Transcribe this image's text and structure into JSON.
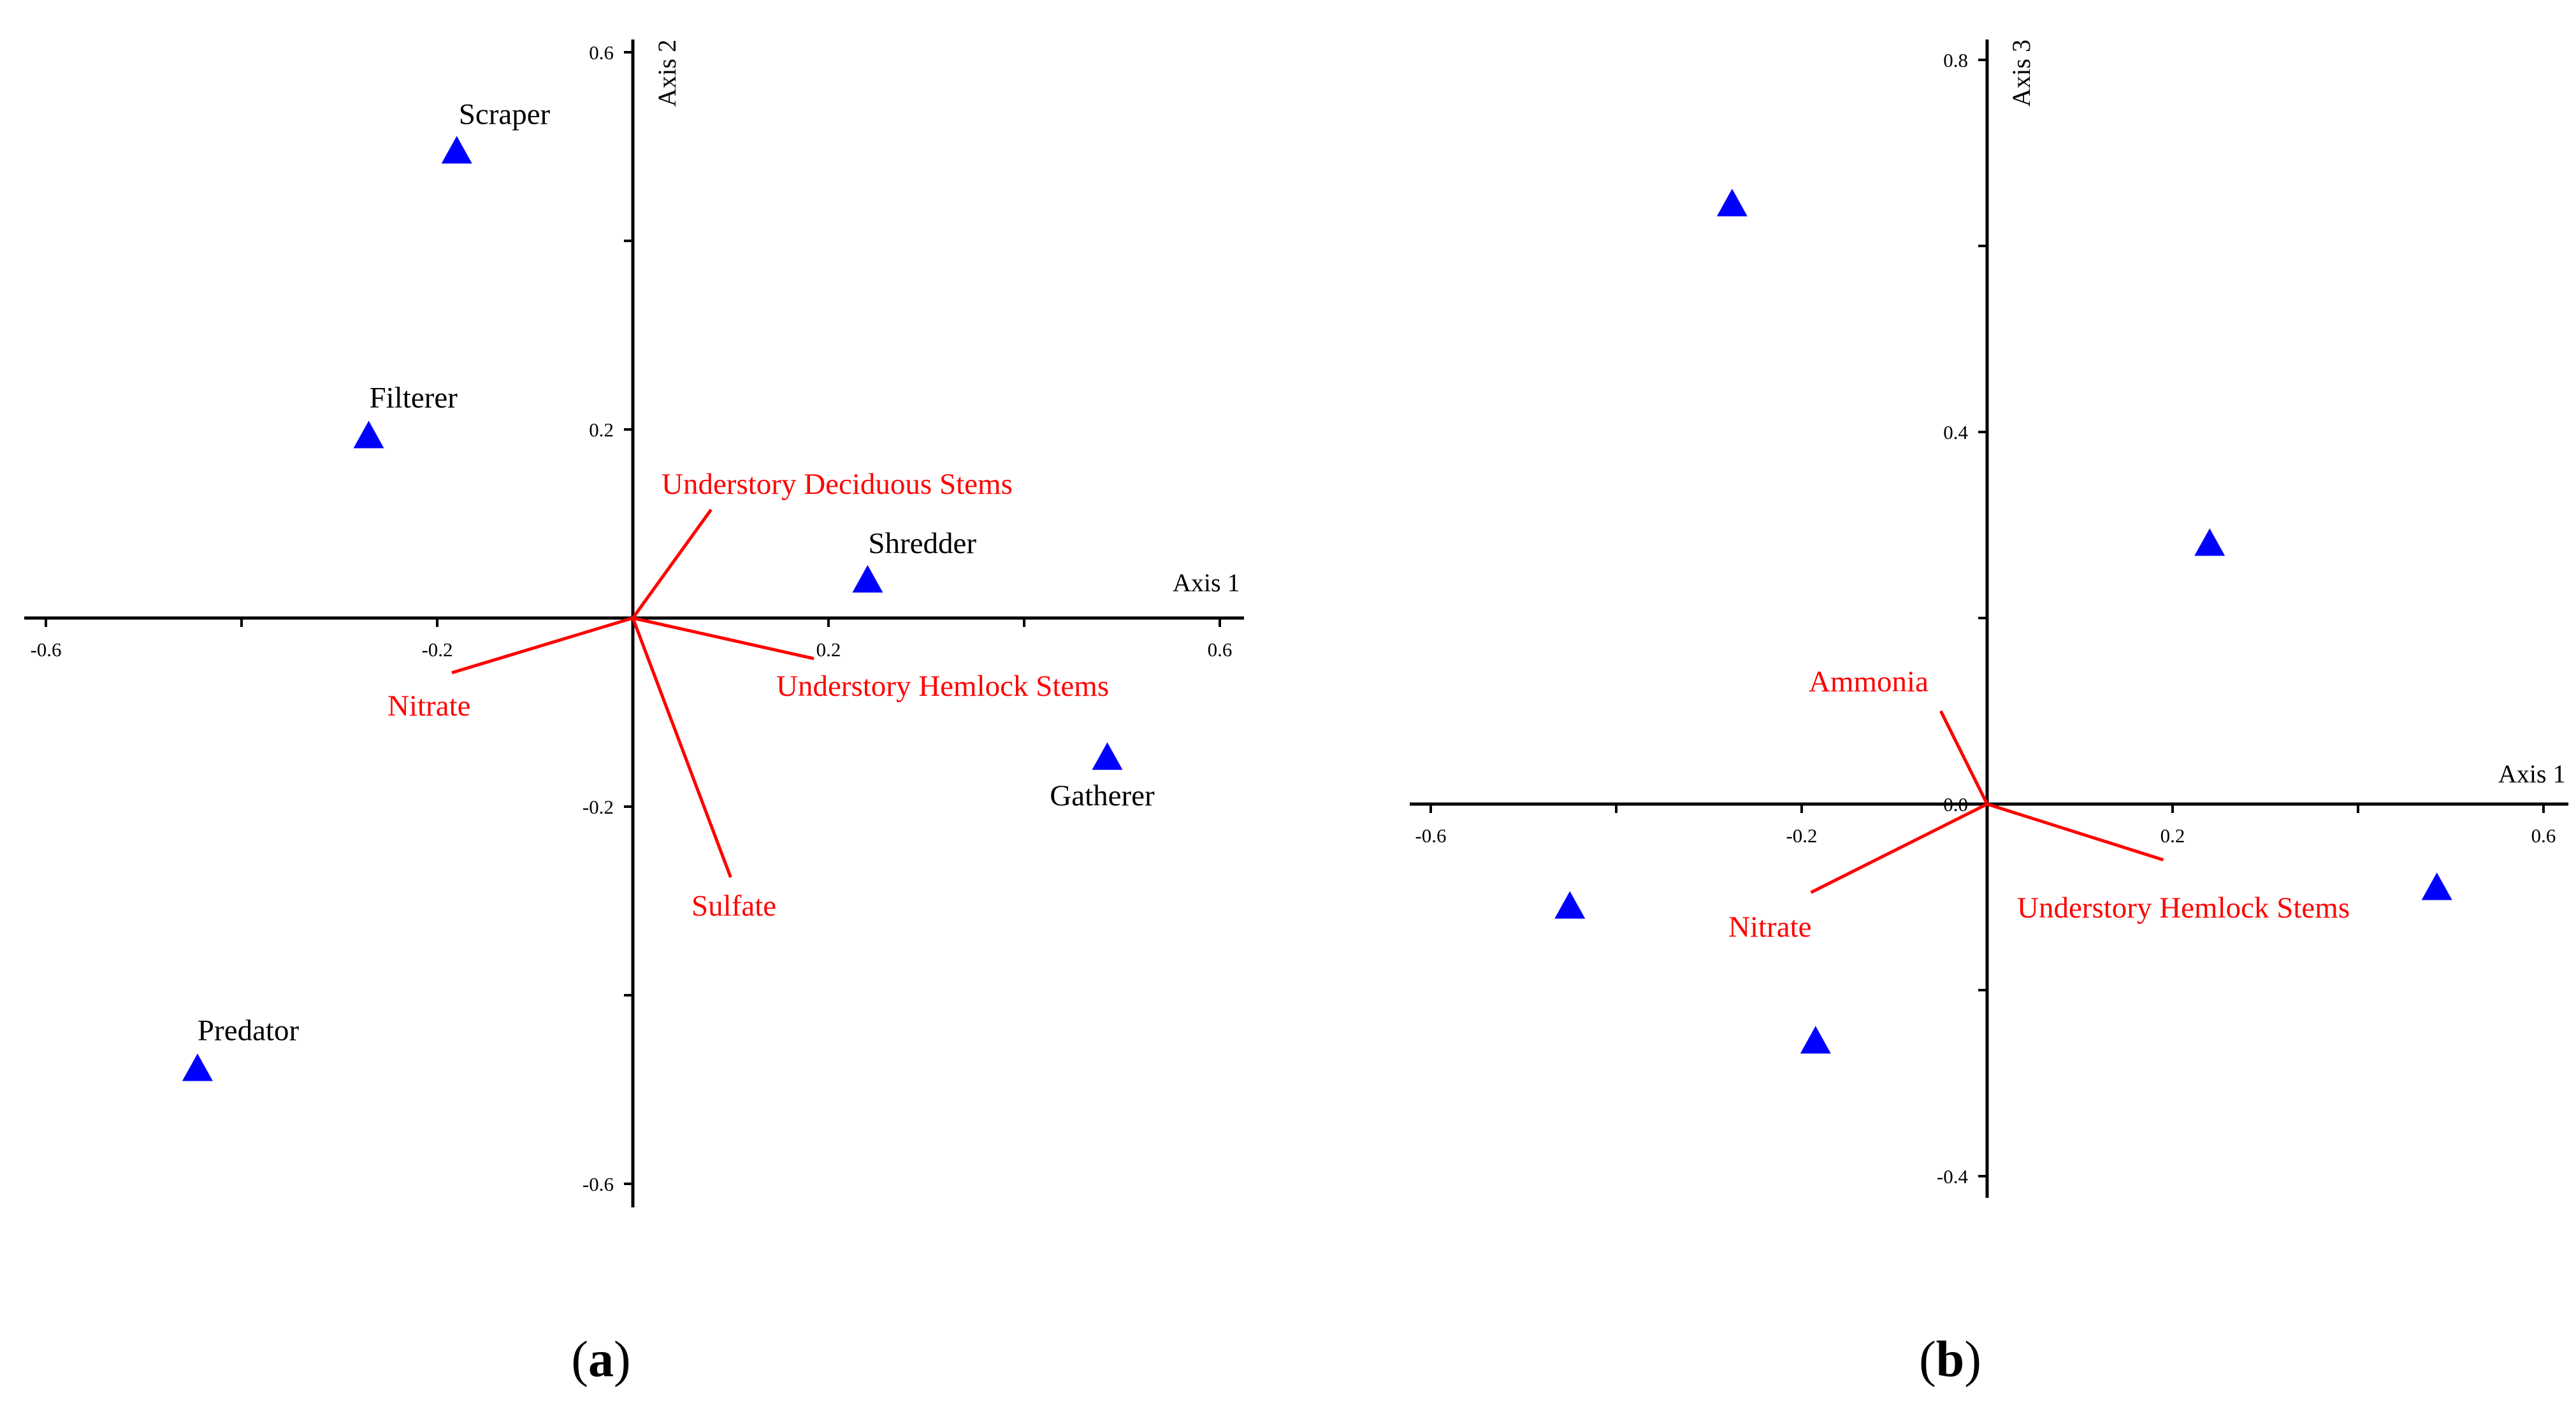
{
  "colors": {
    "marker": "#0000ff",
    "vector": "#ff0000",
    "axis": "#000000",
    "text": "#000000"
  },
  "chart_data": [
    {
      "type": "scatter",
      "panel_label": "a",
      "xlabel": "Axis 1",
      "ylabel": "Axis 2",
      "xlim": [
        -0.62,
        0.62
      ],
      "ylim": [
        -0.62,
        0.62
      ],
      "x_ticks": [
        -0.6,
        -0.4,
        -0.2,
        0.0,
        0.2,
        0.4,
        0.6
      ],
      "x_tick_labels": [
        "-0.6",
        "",
        "-0.2",
        "",
        "0.2",
        "",
        "0.6"
      ],
      "y_ticks": [
        -0.6,
        -0.4,
        -0.2,
        0.0,
        0.2,
        0.4,
        0.6
      ],
      "y_tick_labels": [
        "-0.6",
        "",
        "-0.2",
        "",
        "0.2",
        "",
        "0.6"
      ],
      "points": [
        {
          "label": "Scraper",
          "x": -0.18,
          "y": 0.495
        },
        {
          "label": "Filterer",
          "x": -0.27,
          "y": 0.193
        },
        {
          "label": "Shredder",
          "x": 0.24,
          "y": 0.04
        },
        {
          "label": "Gatherer",
          "x": 0.485,
          "y": -0.148
        },
        {
          "label": "Predator",
          "x": -0.445,
          "y": -0.478
        }
      ],
      "vectors": [
        {
          "label": "Understory Deciduous Stems",
          "x": 0.08,
          "y": 0.115
        },
        {
          "label": "Understory Hemlock Stems",
          "x": 0.185,
          "y": -0.043
        },
        {
          "label": "Nitrate",
          "x": -0.185,
          "y": -0.058
        },
        {
          "label": "Sulfate",
          "x": 0.1,
          "y": -0.275
        }
      ]
    },
    {
      "type": "scatter",
      "panel_label": "b",
      "xlabel": "Axis 1",
      "ylabel": "Axis 3",
      "xlim": [
        -0.62,
        0.62
      ],
      "ylim": [
        -0.42,
        0.82
      ],
      "x_ticks": [
        -0.6,
        -0.4,
        -0.2,
        0.0,
        0.2,
        0.4,
        0.6
      ],
      "x_tick_labels": [
        "-0.6",
        "",
        "-0.2",
        "",
        "0.2",
        "",
        "0.6"
      ],
      "y_ticks": [
        -0.4,
        -0.2,
        0.0,
        0.2,
        0.4,
        0.6,
        0.8
      ],
      "y_tick_labels": [
        "-0.4",
        "",
        "0.0",
        "",
        "0.4",
        "",
        "0.8"
      ],
      "points": [
        {
          "label": "",
          "x": -0.275,
          "y": 0.645
        },
        {
          "label": "",
          "x": 0.24,
          "y": 0.28
        },
        {
          "label": "",
          "x": 0.485,
          "y": -0.09
        },
        {
          "label": "",
          "x": -0.45,
          "y": -0.11
        },
        {
          "label": "",
          "x": -0.185,
          "y": -0.255
        }
      ],
      "vectors": [
        {
          "label": "Ammonia",
          "x": -0.05,
          "y": 0.1
        },
        {
          "label": "Nitrate",
          "x": -0.19,
          "y": -0.095
        },
        {
          "label": "Understory Hemlock Stems",
          "x": 0.19,
          "y": -0.06
        }
      ]
    }
  ]
}
